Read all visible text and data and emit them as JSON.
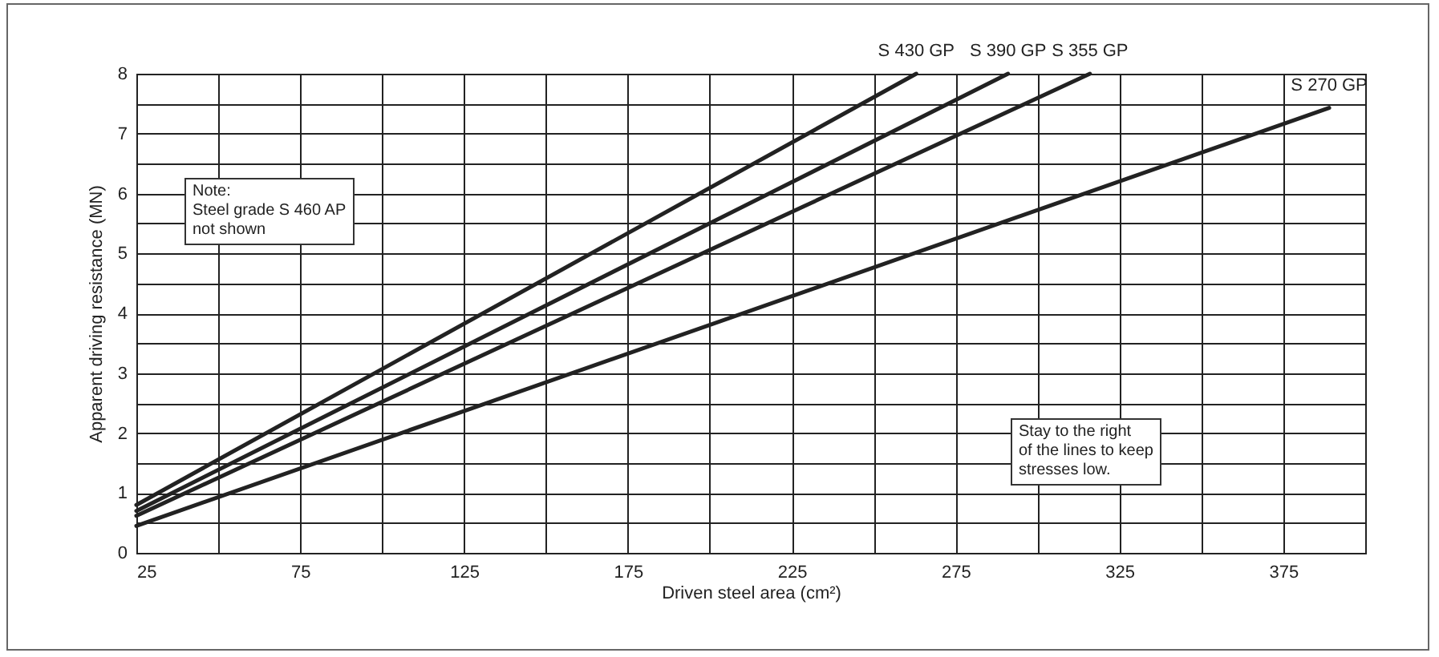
{
  "chart_data": {
    "type": "line",
    "xlabel": "Driven steel area (cm²)",
    "ylabel": "Apparent driving resistance (MN)",
    "xlim": [
      25,
      400
    ],
    "xticks": [
      25,
      {
        "value": 50,
        "label": null
      },
      75,
      {
        "value": 100,
        "label": null
      },
      125,
      {
        "value": 150,
        "label": null
      },
      175,
      {
        "value": 200,
        "label": null
      },
      225,
      {
        "value": 250,
        "label": null
      },
      275,
      {
        "value": 300,
        "label": null
      },
      325,
      {
        "value": 350,
        "label": null
      },
      375,
      {
        "value": 400,
        "label": null
      }
    ],
    "ylim": [
      0,
      8
    ],
    "yticks": [
      0,
      {
        "value": 0.5,
        "label": null
      },
      1,
      {
        "value": 1.5,
        "label": null
      },
      2,
      {
        "value": 2.5,
        "label": null
      },
      3,
      {
        "value": 3.5,
        "label": null
      },
      4,
      {
        "value": 4.5,
        "label": null
      },
      5,
      {
        "value": 5.5,
        "label": null
      },
      6,
      {
        "value": 6.5,
        "label": null
      },
      7,
      {
        "value": 7.5,
        "label": null
      },
      8
    ],
    "grid": true,
    "legend": false,
    "marker": "none",
    "line_style": "solid",
    "series": [
      {
        "name": "S 430 GP",
        "color": "#222222",
        "x": [
          25,
          263
        ],
        "values": [
          0.8,
          8
        ]
      },
      {
        "name": "S 390 GP",
        "color": "#222222",
        "x": [
          25,
          291
        ],
        "values": [
          0.7,
          8
        ]
      },
      {
        "name": "S 355 GP",
        "color": "#222222",
        "x": [
          25,
          316
        ],
        "values": [
          0.62,
          8
        ]
      },
      {
        "name": "S 270 GP",
        "color": "#222222",
        "x": [
          25,
          389
        ],
        "values": [
          0.45,
          7.43
        ]
      }
    ],
    "annotations": [
      "Note:\nSteel grade S 460 AP\nnot shown",
      "Stay to the right\nof the lines to keep\nstresses low."
    ]
  }
}
